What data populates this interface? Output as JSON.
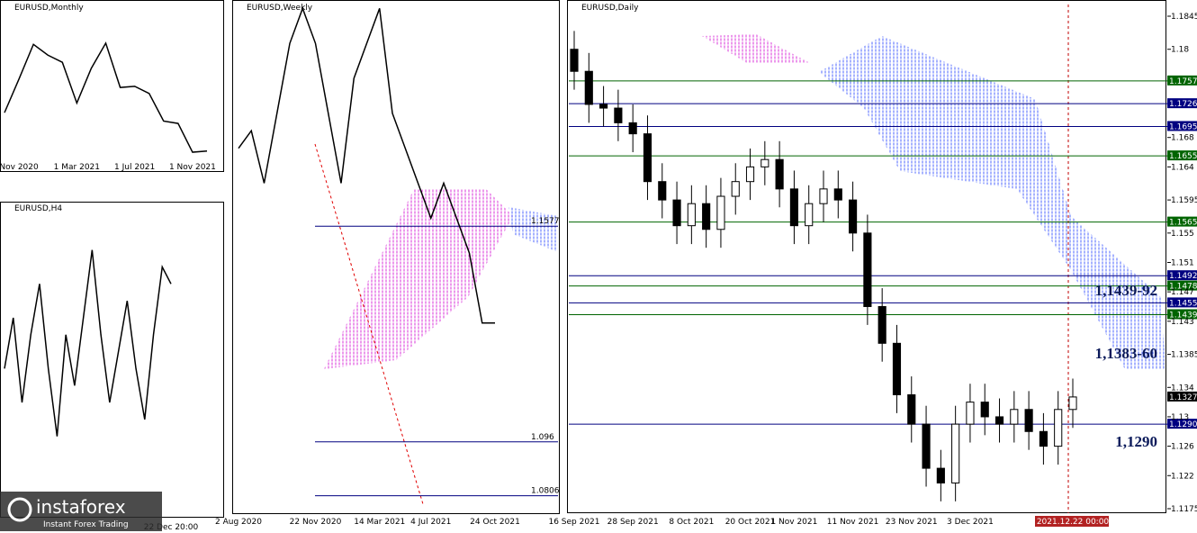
{
  "chart_data": [
    {
      "type": "line",
      "title": "EURUSD,Monthly",
      "color": "#000000",
      "ylim": [
        1.12,
        1.25
      ],
      "categories": [
        null,
        "Nov 2020",
        null,
        null,
        null,
        "1 Mar 2021",
        null,
        null,
        null,
        "1 Jul 2021",
        null,
        null,
        null,
        "1 Nov 2021",
        null
      ],
      "values": [
        1.165,
        1.193,
        1.222,
        1.213,
        1.207,
        1.173,
        1.202,
        1.223,
        1.186,
        1.187,
        1.181,
        1.158,
        1.156,
        1.132,
        1.133
      ]
    },
    {
      "type": "line",
      "title": "EURUSD,H4",
      "color": "#000000",
      "ylim": [
        1.12,
        1.137
      ],
      "categories": [
        null,
        null,
        null,
        null,
        null,
        null,
        null,
        null,
        null,
        null,
        null,
        null,
        null,
        null,
        null,
        null,
        null,
        null,
        null,
        "22 Dec 20:00"
      ],
      "values": [
        1.128,
        1.131,
        1.126,
        1.13,
        1.133,
        1.128,
        1.124,
        1.13,
        1.127,
        1.131,
        1.135,
        1.13,
        1.126,
        1.129,
        1.132,
        1.128,
        1.125,
        1.13,
        1.134,
        1.133
      ]
    },
    {
      "type": "line",
      "title": "EURUSD,Weekly",
      "color": "#000000",
      "ylim": [
        1.2224,
        1.0756
      ],
      "categories": [
        "2 Aug 2020",
        null,
        null,
        null,
        null,
        null,
        "22 Nov 2020",
        null,
        null,
        null,
        null,
        "14 Mar 2021",
        null,
        null,
        null,
        "4 Jul 2021",
        null,
        null,
        null,
        null,
        "24 Oct 2021"
      ],
      "values": [
        1.18,
        1.185,
        1.17,
        1.19,
        1.21,
        1.22,
        1.21,
        1.19,
        1.17,
        1.2,
        1.21,
        1.22,
        1.19,
        1.18,
        1.17,
        1.16,
        1.17,
        1.16,
        1.15,
        1.13,
        1.13
      ],
      "levels": [
        {
          "value": 1.1577,
          "color": "#000080"
        },
        {
          "value": 1.096,
          "color": "#000080"
        },
        {
          "value": 1.0806,
          "color": "#000080"
        }
      ]
    },
    {
      "type": "candlestick",
      "title": "EURUSD,Daily",
      "ylim": [
        1.1845,
        1.1175
      ],
      "yticks": [
        1.1845,
        1.18,
        1.168,
        1.164,
        1.1595,
        1.155,
        1.151,
        1.147,
        1.143,
        1.1385,
        1.134,
        1.13,
        1.126,
        1.122,
        1.1175
      ],
      "categories": [
        "16 Sep 2021",
        null,
        null,
        null,
        "28 Sep 2021",
        null,
        null,
        null,
        "8 Oct 2021",
        null,
        null,
        null,
        "20 Oct 2021",
        null,
        null,
        "1 Nov 2021",
        null,
        null,
        null,
        "11 Nov 2021",
        null,
        null,
        null,
        "23 Nov 2021",
        null,
        null,
        null,
        "3 Dec 2021",
        null,
        null,
        null,
        null,
        null,
        null,
        "2021.12.22 00:00"
      ],
      "open": [
        1.18,
        1.177,
        1.1725,
        1.172,
        1.17,
        1.1685,
        1.162,
        1.1595,
        1.156,
        1.159,
        1.1555,
        1.16,
        1.162,
        1.164,
        1.165,
        1.161,
        1.156,
        1.159,
        1.161,
        1.1595,
        1.155,
        1.145,
        1.14,
        1.133,
        1.129,
        1.123,
        1.121,
        1.129,
        1.132,
        1.13,
        1.129,
        1.131,
        1.128,
        1.126,
        1.131
      ],
      "high": [
        1.1825,
        1.1795,
        1.175,
        1.1745,
        1.1725,
        1.171,
        1.1645,
        1.162,
        1.1615,
        1.1615,
        1.1625,
        1.1645,
        1.1665,
        1.1675,
        1.1675,
        1.1635,
        1.1615,
        1.1635,
        1.1635,
        1.162,
        1.1575,
        1.1475,
        1.1425,
        1.1355,
        1.1315,
        1.1255,
        1.1315,
        1.1345,
        1.1345,
        1.1325,
        1.1335,
        1.1335,
        1.1305,
        1.1335,
        1.1352
      ],
      "low": [
        1.1745,
        1.17,
        1.1695,
        1.1675,
        1.166,
        1.1595,
        1.157,
        1.1535,
        1.1535,
        1.153,
        1.153,
        1.1575,
        1.1595,
        1.1615,
        1.1585,
        1.1535,
        1.1535,
        1.1565,
        1.157,
        1.1525,
        1.1425,
        1.1375,
        1.1305,
        1.1265,
        1.1205,
        1.1185,
        1.1185,
        1.1265,
        1.1275,
        1.1265,
        1.1265,
        1.1255,
        1.1235,
        1.1235,
        1.1285
      ],
      "close": [
        1.177,
        1.1725,
        1.172,
        1.17,
        1.1685,
        1.162,
        1.1595,
        1.156,
        1.159,
        1.1555,
        1.16,
        1.162,
        1.164,
        1.165,
        1.161,
        1.156,
        1.159,
        1.161,
        1.1595,
        1.155,
        1.145,
        1.14,
        1.133,
        1.129,
        1.123,
        1.121,
        1.129,
        1.132,
        1.13,
        1.129,
        1.131,
        1.128,
        1.126,
        1.131,
        1.1327
      ],
      "levels": [
        {
          "value": 1.1757,
          "label": "1.1757",
          "color": "#006400"
        },
        {
          "value": 1.1726,
          "label": "1.1726",
          "color": "#000080"
        },
        {
          "value": 1.1695,
          "label": "1.1695",
          "color": "#000080"
        },
        {
          "value": 1.1655,
          "label": "1.1655",
          "color": "#006400"
        },
        {
          "value": 1.1565,
          "label": "1.1565",
          "color": "#006400"
        },
        {
          "value": 1.1492,
          "label": "1.1492",
          "color": "#000080"
        },
        {
          "value": 1.1478,
          "label": "1.1478",
          "color": "#006400"
        },
        {
          "value": 1.1455,
          "label": "1.1455",
          "color": "#000080"
        },
        {
          "value": 1.1439,
          "label": "1.1439",
          "color": "#006400"
        },
        {
          "value": 1.129,
          "label": "1.1290",
          "color": "#000080"
        }
      ],
      "current": {
        "value": 1.1327,
        "label": "1.1327"
      },
      "annotations": [
        "1,1439-92",
        "1,1383-60",
        "1,1290"
      ]
    }
  ],
  "branding": {
    "name": "instaforex",
    "tagline": "Instant Forex Trading"
  }
}
